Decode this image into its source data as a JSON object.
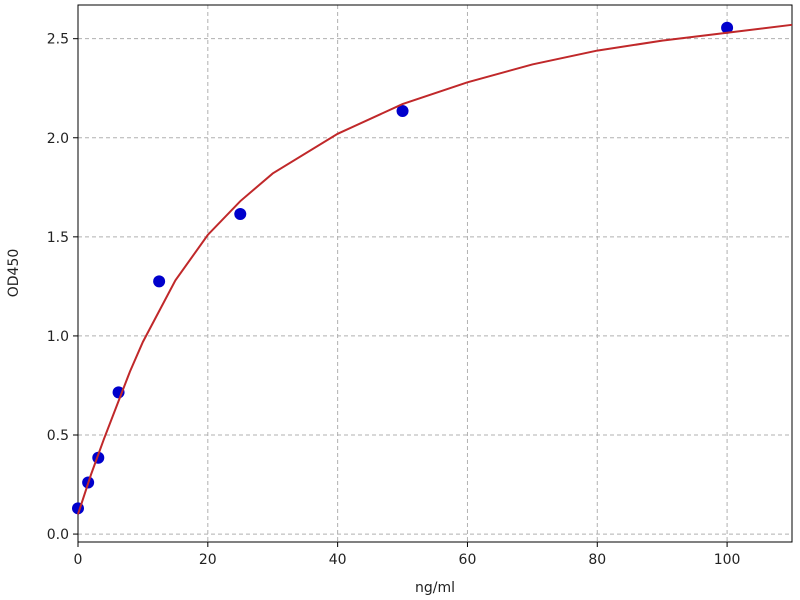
{
  "chart_data": {
    "type": "scatter",
    "x_label": "ng/ml",
    "y_label": "OD450",
    "xlim": [
      0,
      110
    ],
    "ylim": [
      -0.04,
      2.67
    ],
    "xticks": [
      0,
      20,
      40,
      60,
      80,
      100
    ],
    "yticks": [
      {
        "value": 0,
        "label": "0.0"
      },
      0.5,
      {
        "value": 1,
        "label": "1.0"
      },
      1.5,
      {
        "value": 2,
        "label": "2.0"
      },
      2.5
    ],
    "grid": true,
    "series": [
      {
        "style": "markers",
        "color": "#0000cc",
        "x": [
          0,
          1.5625,
          3.125,
          6.25,
          12.5,
          25,
          50,
          100
        ],
        "values": [
          0.13,
          0.26,
          0.385,
          0.715,
          1.275,
          1.615,
          2.135,
          2.555
        ]
      },
      {
        "style": "line",
        "color": "#c0282a",
        "x": [
          0,
          2,
          4,
          6,
          8,
          10,
          15,
          20,
          25,
          30,
          40,
          50,
          60,
          70,
          80,
          90,
          100,
          110
        ],
        "values": [
          0.1,
          0.3,
          0.48,
          0.65,
          0.82,
          0.97,
          1.28,
          1.51,
          1.68,
          1.82,
          2.02,
          2.17,
          2.28,
          2.37,
          2.44,
          2.49,
          2.53,
          2.57
        ]
      }
    ]
  }
}
